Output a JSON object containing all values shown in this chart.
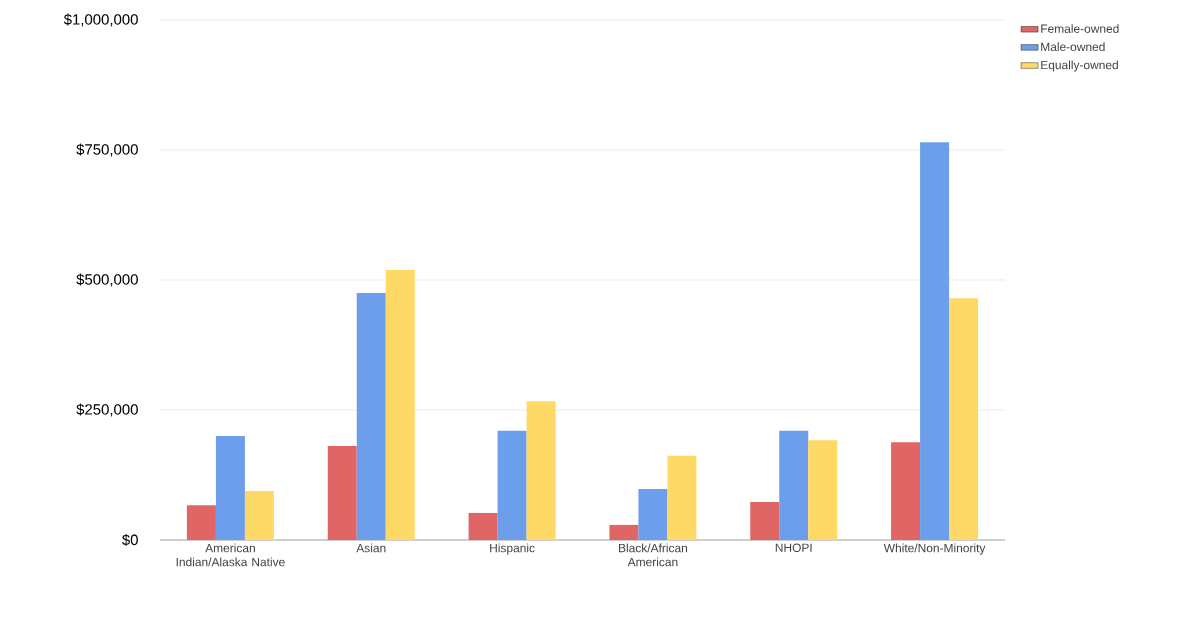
{
  "chart_data": {
    "type": "bar",
    "categories": [
      "American Indian/Alaska Native",
      "Asian",
      "Hispanic",
      "Black/African American",
      "NHOPI",
      "White/Non-Minority"
    ],
    "series": [
      {
        "name": "Female-owned",
        "color": "#e06666",
        "values": [
          67000,
          181000,
          52000,
          29000,
          73000,
          188000
        ]
      },
      {
        "name": "Male-owned",
        "color": "#6d9eeb",
        "values": [
          200000,
          475000,
          210000,
          98000,
          210000,
          765000
        ]
      },
      {
        "name": "Equally-owned",
        "color": "#ffd966",
        "values": [
          94000,
          519000,
          267000,
          162000,
          192000,
          465000
        ]
      }
    ],
    "ylim": [
      0,
      1000000
    ],
    "yticks": [
      {
        "value": 0,
        "label": "$0"
      },
      {
        "value": 250000,
        "label": "$250,000"
      },
      {
        "value": 500000,
        "label": "$500,000"
      },
      {
        "value": 750000,
        "label": "$750,000"
      },
      {
        "value": 1000000,
        "label": "$1,000,000"
      }
    ],
    "grid": "y",
    "legend": "top right"
  }
}
